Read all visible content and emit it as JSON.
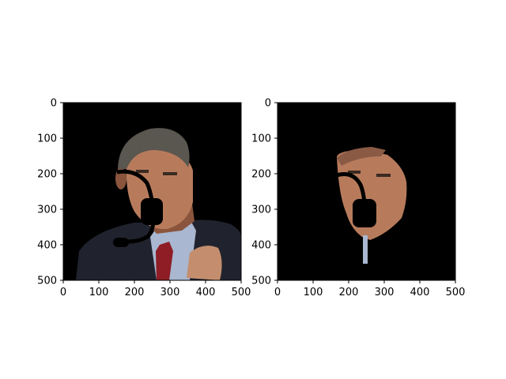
{
  "chart_data": [
    {
      "type": "image",
      "title": "",
      "xlabel": "",
      "ylabel": "",
      "xlim": [
        0,
        500
      ],
      "ylim": [
        500,
        0
      ],
      "xticks": [
        "0",
        "100",
        "200",
        "300",
        "400",
        "500"
      ],
      "yticks": [
        "0",
        "100",
        "200",
        "300",
        "400",
        "500"
      ],
      "background": "#000000",
      "content": "photo"
    },
    {
      "type": "image",
      "title": "",
      "xlabel": "",
      "ylabel": "",
      "xlim": [
        0,
        500
      ],
      "ylim": [
        500,
        0
      ],
      "xticks": [
        "0",
        "100",
        "200",
        "300",
        "400",
        "500"
      ],
      "yticks": [
        "0",
        "100",
        "200",
        "300",
        "400",
        "500"
      ],
      "background": "#000000",
      "content": "masked-face"
    }
  ],
  "colors": {
    "skin": "#b77b5c",
    "skin_shadow": "#8a553c",
    "hair": "#5a5650",
    "suit": "#20232e",
    "shirt": "#a9b7d0",
    "tie": "#8e1d25"
  }
}
